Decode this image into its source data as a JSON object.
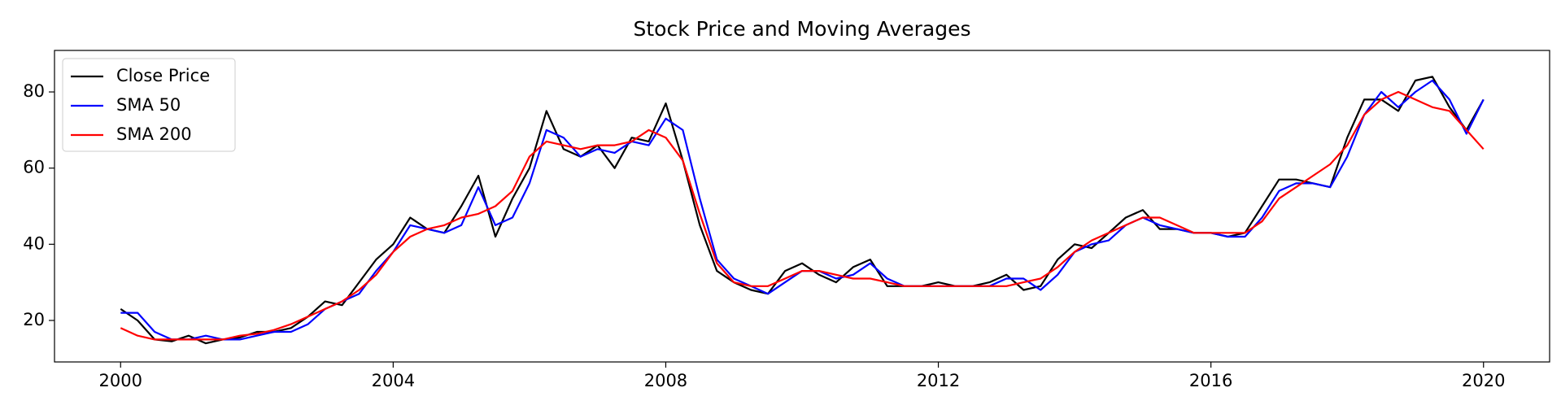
{
  "chart_data": {
    "type": "line",
    "title": "Stock Price and Moving Averages",
    "x": [
      2000,
      2000.25,
      2000.5,
      2000.75,
      2001,
      2001.25,
      2001.5,
      2001.75,
      2002,
      2002.25,
      2002.5,
      2002.75,
      2003,
      2003.25,
      2003.5,
      2003.75,
      2004,
      2004.25,
      2004.5,
      2004.75,
      2005,
      2005.25,
      2005.5,
      2005.75,
      2006,
      2006.25,
      2006.5,
      2006.75,
      2007,
      2007.25,
      2007.5,
      2007.75,
      2008,
      2008.25,
      2008.5,
      2008.75,
      2009,
      2009.25,
      2009.5,
      2009.75,
      2010,
      2010.25,
      2010.5,
      2010.75,
      2011,
      2011.25,
      2011.5,
      2011.75,
      2012,
      2012.25,
      2012.5,
      2012.75,
      2013,
      2013.25,
      2013.5,
      2013.75,
      2014,
      2014.25,
      2014.5,
      2014.75,
      2015,
      2015.25,
      2015.5,
      2015.75,
      2016,
      2016.25,
      2016.5,
      2016.75,
      2017,
      2017.25,
      2017.5,
      2017.75,
      2018,
      2018.25,
      2018.5,
      2018.75,
      2019,
      2019.25,
      2019.5,
      2019.75,
      2020
    ],
    "series": [
      {
        "name": "Close Price",
        "color": "#000000",
        "values": [
          23,
          20,
          15,
          14.5,
          16,
          14,
          15,
          15.5,
          17,
          17,
          18,
          21,
          25,
          24,
          30,
          36,
          40,
          47,
          44,
          43,
          50,
          58,
          42,
          52,
          60,
          75,
          65,
          63,
          66,
          60,
          68,
          67,
          77,
          62,
          45,
          33,
          30,
          28,
          27,
          33,
          35,
          32,
          30,
          34,
          36,
          29,
          29,
          29,
          30,
          29,
          29,
          30,
          32,
          28,
          29,
          36,
          40,
          39,
          43,
          47,
          49,
          44,
          44,
          43,
          43,
          42,
          43,
          50,
          57,
          57,
          56,
          55,
          68,
          78,
          78,
          75,
          83,
          84,
          76,
          70,
          78
        ]
      },
      {
        "name": "SMA 50",
        "color": "#0000ff",
        "values": [
          22,
          22,
          17,
          15,
          15,
          16,
          15,
          15,
          16,
          17,
          17,
          19,
          23,
          25,
          27,
          33,
          38,
          45,
          44,
          43,
          45,
          55,
          45,
          47,
          56,
          70,
          68,
          63,
          65,
          64,
          67,
          66,
          73,
          70,
          52,
          36,
          31,
          29,
          27,
          30,
          33,
          33,
          31,
          32,
          35,
          31,
          29,
          29,
          29,
          29,
          29,
          29,
          31,
          31,
          28,
          32,
          38,
          40,
          41,
          45,
          47,
          45,
          44,
          43,
          43,
          42,
          42,
          47,
          54,
          56,
          56,
          55,
          63,
          74,
          80,
          76,
          80,
          83,
          78,
          69,
          78
        ]
      },
      {
        "name": "SMA 200",
        "color": "#ff0000",
        "values": [
          18,
          16,
          15,
          15,
          15,
          15,
          15,
          16,
          16.5,
          17.5,
          19,
          21,
          23,
          25,
          28,
          32,
          38,
          42,
          44,
          45,
          47,
          48,
          50,
          54,
          63,
          67,
          66,
          65,
          66,
          66,
          67,
          70,
          68,
          62,
          48,
          35,
          30,
          29,
          29,
          31,
          33,
          33,
          32,
          31,
          31,
          30,
          29,
          29,
          29,
          29,
          29,
          29,
          29,
          30,
          31,
          34,
          38,
          41,
          43,
          45,
          47,
          47,
          45,
          43,
          43,
          43,
          43,
          46,
          52,
          55,
          58,
          61,
          66,
          74,
          78,
          80,
          78,
          76,
          75,
          70,
          65
        ]
      }
    ],
    "xlim": [
      1999.03,
      2020.97
    ],
    "xticks": [
      2000,
      2004,
      2008,
      2012,
      2016,
      2020
    ],
    "ylim": [
      9.1,
      90.9
    ],
    "yticks": [
      20,
      40,
      60,
      80
    ],
    "legend": "upper left"
  }
}
